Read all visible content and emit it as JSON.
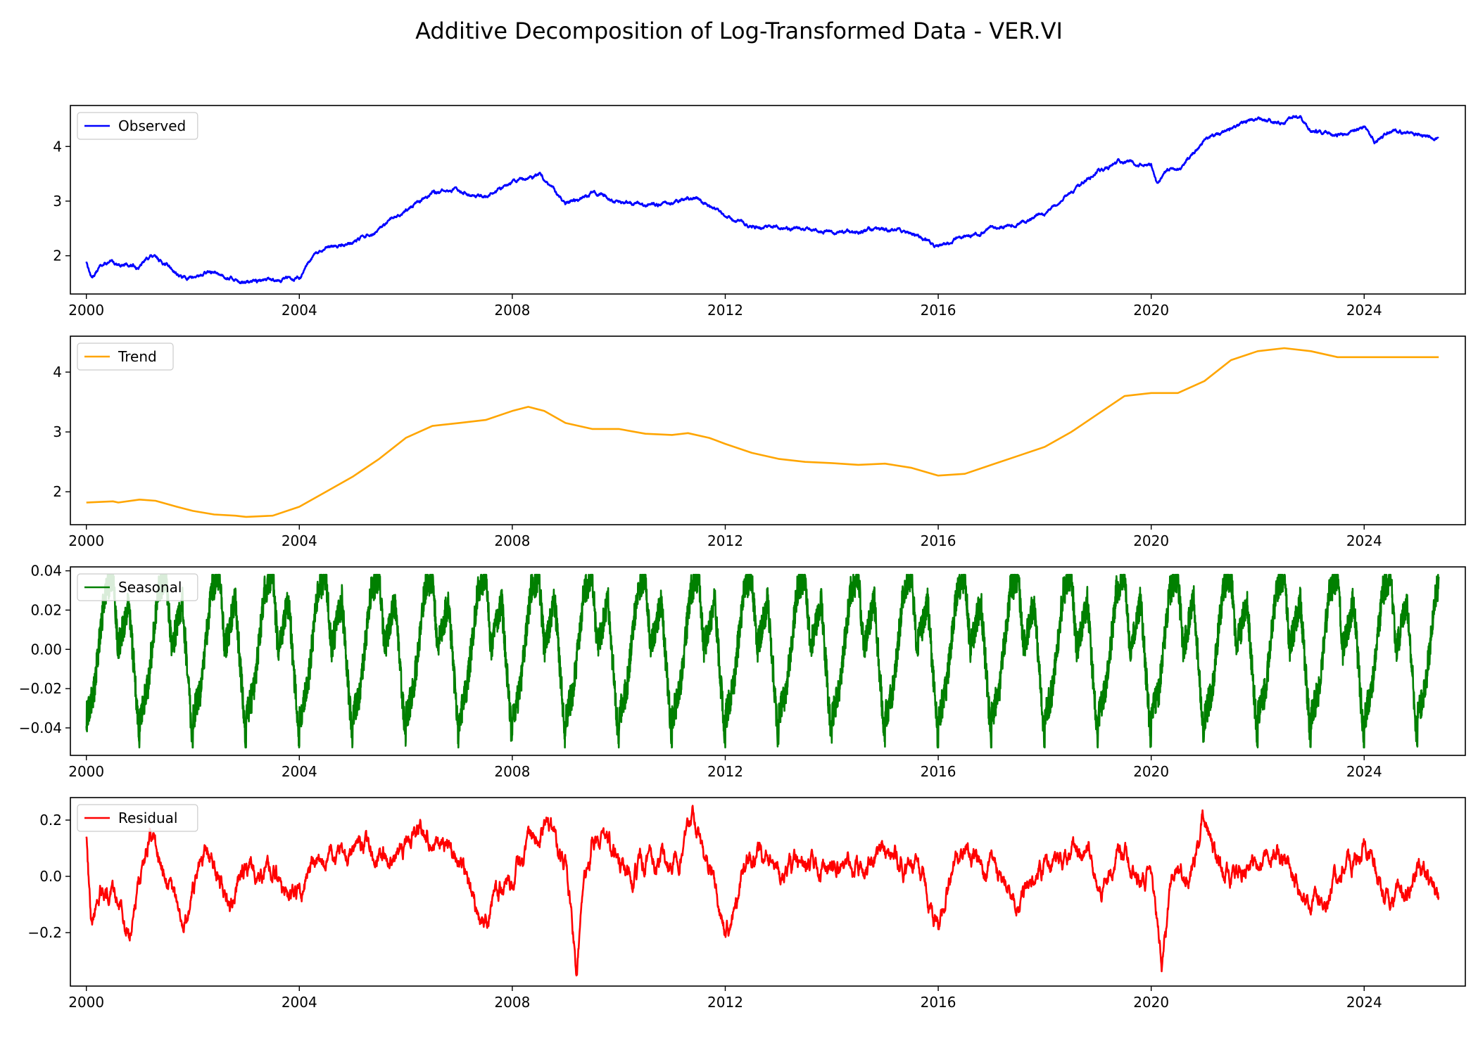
{
  "figure": {
    "title": "Additive Decomposition of Log-Transformed Data - VER.VI"
  },
  "chart_data": [
    {
      "type": "line",
      "series": [
        {
          "name": "Observed",
          "color": "#0000ff"
        }
      ],
      "xlim": [
        1999.7,
        2025.9
      ],
      "ylim": [
        1.3,
        4.75
      ],
      "xticks": [
        2000,
        2004,
        2008,
        2012,
        2016,
        2020,
        2024
      ],
      "xtick_labels": [
        "2000",
        "2004",
        "2008",
        "2012",
        "2016",
        "2020",
        "2024"
      ],
      "yticks": [
        2,
        3,
        4
      ],
      "ytick_labels": [
        "2",
        "3",
        "4"
      ],
      "legend_position": "upper-left",
      "noise": 0.035,
      "x": [
        2000.0,
        2000.1,
        2000.3,
        2000.6,
        2001.0,
        2001.2,
        2001.5,
        2001.8,
        2002.0,
        2002.3,
        2002.6,
        2003.0,
        2003.5,
        2004.0,
        2004.3,
        2004.6,
        2005.0,
        2005.5,
        2006.0,
        2006.5,
        2007.0,
        2007.5,
        2008.0,
        2008.5,
        2009.0,
        2009.5,
        2010.0,
        2010.5,
        2011.0,
        2011.5,
        2012.0,
        2012.5,
        2013.0,
        2013.5,
        2014.0,
        2014.5,
        2015.0,
        2015.5,
        2016.0,
        2016.5,
        2017.0,
        2017.5,
        2018.0,
        2018.5,
        2019.0,
        2019.5,
        2020.0,
        2020.1,
        2020.3,
        2020.6,
        2021.0,
        2021.5,
        2022.0,
        2022.5,
        2022.8,
        2023.0,
        2023.5,
        2024.0,
        2024.2,
        2024.5,
        2025.0,
        2025.4
      ],
      "y": [
        1.9,
        1.6,
        1.85,
        1.85,
        1.8,
        2.0,
        1.85,
        1.6,
        1.6,
        1.7,
        1.65,
        1.5,
        1.58,
        1.6,
        2.0,
        2.15,
        2.25,
        2.45,
        2.85,
        3.15,
        3.2,
        3.1,
        3.35,
        3.5,
        2.9,
        3.15,
        3.0,
        2.95,
        2.95,
        3.05,
        2.7,
        2.55,
        2.5,
        2.5,
        2.45,
        2.45,
        2.5,
        2.4,
        2.15,
        2.35,
        2.5,
        2.6,
        2.8,
        3.15,
        3.55,
        3.75,
        3.65,
        3.3,
        3.55,
        3.65,
        4.1,
        4.35,
        4.5,
        4.45,
        4.55,
        4.3,
        4.2,
        4.35,
        4.1,
        4.3,
        4.2,
        4.18
      ]
    },
    {
      "type": "line",
      "series": [
        {
          "name": "Trend",
          "color": "#ffa500"
        }
      ],
      "xlim": [
        1999.7,
        2025.9
      ],
      "ylim": [
        1.45,
        4.6
      ],
      "xticks": [
        2000,
        2004,
        2008,
        2012,
        2016,
        2020,
        2024
      ],
      "xtick_labels": [
        "2000",
        "2004",
        "2008",
        "2012",
        "2016",
        "2020",
        "2024"
      ],
      "yticks": [
        2,
        3,
        4
      ],
      "ytick_labels": [
        "2",
        "3",
        "4"
      ],
      "legend_position": "upper-left",
      "x": [
        2000.0,
        2000.5,
        2000.6,
        2001.0,
        2001.3,
        2001.7,
        2002.0,
        2002.4,
        2002.8,
        2003.0,
        2003.5,
        2004.0,
        2004.5,
        2005.0,
        2005.5,
        2006.0,
        2006.5,
        2007.0,
        2007.5,
        2008.0,
        2008.3,
        2008.6,
        2009.0,
        2009.5,
        2010.0,
        2010.5,
        2011.0,
        2011.3,
        2011.7,
        2012.0,
        2012.5,
        2013.0,
        2013.5,
        2014.0,
        2014.5,
        2015.0,
        2015.5,
        2016.0,
        2016.5,
        2017.0,
        2017.5,
        2018.0,
        2018.5,
        2019.0,
        2019.5,
        2020.0,
        2020.5,
        2021.0,
        2021.5,
        2022.0,
        2022.5,
        2023.0,
        2023.5,
        2024.0,
        2024.5,
        2025.0,
        2025.4
      ],
      "y": [
        1.82,
        1.84,
        1.82,
        1.87,
        1.85,
        1.75,
        1.68,
        1.62,
        1.6,
        1.58,
        1.6,
        1.75,
        2.0,
        2.25,
        2.55,
        2.9,
        3.1,
        3.15,
        3.2,
        3.35,
        3.42,
        3.35,
        3.15,
        3.05,
        3.05,
        2.97,
        2.95,
        2.98,
        2.9,
        2.8,
        2.65,
        2.55,
        2.5,
        2.48,
        2.45,
        2.47,
        2.4,
        2.27,
        2.3,
        2.45,
        2.6,
        2.75,
        3.0,
        3.3,
        3.6,
        3.65,
        3.65,
        3.85,
        4.2,
        4.35,
        4.4,
        4.35,
        4.25,
        4.25,
        4.25,
        4.25,
        4.25
      ]
    },
    {
      "type": "line",
      "series": [
        {
          "name": "Seasonal",
          "color": "#008000"
        }
      ],
      "xlim": [
        1999.7,
        2025.9
      ],
      "ylim": [
        -0.054,
        0.042
      ],
      "xticks": [
        2000,
        2004,
        2008,
        2012,
        2016,
        2020,
        2024
      ],
      "xtick_labels": [
        "2000",
        "2004",
        "2008",
        "2012",
        "2016",
        "2020",
        "2024"
      ],
      "yticks": [
        0.04,
        0.02,
        0.0,
        -0.02,
        -0.04
      ],
      "ytick_labels": [
        "0.04",
        "0.02",
        "0.00",
        "−0.02",
        "−0.04"
      ],
      "legend_position": "upper-left",
      "period_years": 1.0,
      "range": [
        -0.05,
        0.038
      ],
      "noise": 0.008,
      "x": [
        2000.0,
        2000.15,
        2000.35,
        2000.5,
        2000.6,
        2000.8,
        2001.0
      ],
      "y": [
        -0.035,
        -0.02,
        0.03,
        0.038,
        0.0,
        0.025,
        -0.048
      ]
    },
    {
      "type": "line",
      "series": [
        {
          "name": "Residual",
          "color": "#ff0000"
        }
      ],
      "xlim": [
        1999.7,
        2025.9
      ],
      "ylim": [
        -0.39,
        0.28
      ],
      "xticks": [
        2000,
        2004,
        2008,
        2012,
        2016,
        2020,
        2024
      ],
      "xtick_labels": [
        "2000",
        "2004",
        "2008",
        "2012",
        "2016",
        "2020",
        "2024"
      ],
      "yticks": [
        0.2,
        0.0,
        -0.2
      ],
      "ytick_labels": [
        "0.2",
        "0.0",
        "−0.2"
      ],
      "legend_position": "upper-left",
      "noise": 0.04,
      "x": [
        2000.0,
        2000.1,
        2000.3,
        2000.8,
        2001.2,
        2001.8,
        2002.3,
        2002.7,
        2003.0,
        2003.5,
        2004.0,
        2004.5,
        2005.5,
        2006.3,
        2007.0,
        2007.4,
        2008.0,
        2008.6,
        2009.0,
        2009.2,
        2009.5,
        2010.0,
        2010.5,
        2011.0,
        2011.4,
        2011.8,
        2012.0,
        2012.5,
        2013.0,
        2014.0,
        2015.0,
        2015.7,
        2016.0,
        2016.3,
        2017.0,
        2017.5,
        2018.0,
        2018.8,
        2019.0,
        2019.5,
        2020.0,
        2020.2,
        2020.4,
        2020.8,
        2021.0,
        2021.3,
        2022.0,
        2022.5,
        2023.0,
        2023.5,
        2024.0,
        2024.5,
        2025.0,
        2025.4
      ],
      "y": [
        0.15,
        -0.2,
        0.0,
        -0.15,
        0.15,
        -0.2,
        0.1,
        -0.1,
        0.05,
        0.0,
        -0.08,
        0.1,
        0.05,
        0.15,
        0.05,
        -0.18,
        0.0,
        0.2,
        0.0,
        -0.3,
        0.15,
        0.0,
        0.05,
        0.05,
        0.2,
        -0.05,
        -0.2,
        0.1,
        0.0,
        0.05,
        0.05,
        0.0,
        -0.18,
        0.05,
        0.05,
        -0.1,
        0.05,
        0.12,
        -0.05,
        0.05,
        0.0,
        -0.33,
        0.0,
        0.05,
        0.22,
        0.0,
        0.05,
        0.1,
        -0.1,
        0.0,
        0.1,
        -0.12,
        0.05,
        -0.07
      ]
    }
  ]
}
